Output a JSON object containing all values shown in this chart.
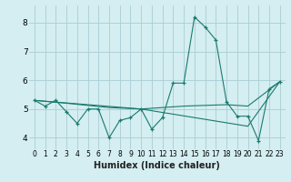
{
  "xlabel": "Humidex (Indice chaleur)",
  "bg_color": "#d4eef1",
  "grid_color": "#aacdd4",
  "line_color": "#1a7a6e",
  "xlim": [
    -0.5,
    23.5
  ],
  "ylim": [
    3.6,
    8.6
  ],
  "xticks": [
    0,
    1,
    2,
    3,
    4,
    5,
    6,
    7,
    8,
    9,
    10,
    11,
    12,
    13,
    14,
    15,
    16,
    17,
    18,
    19,
    20,
    21,
    22,
    23
  ],
  "yticks": [
    4,
    5,
    6,
    7,
    8
  ],
  "series_main": [
    [
      0,
      5.3
    ],
    [
      1,
      5.1
    ],
    [
      2,
      5.3
    ],
    [
      3,
      4.9
    ],
    [
      4,
      4.5
    ],
    [
      5,
      5.0
    ],
    [
      6,
      5.0
    ],
    [
      7,
      4.0
    ],
    [
      8,
      4.6
    ],
    [
      9,
      4.7
    ],
    [
      10,
      5.0
    ],
    [
      11,
      4.3
    ],
    [
      12,
      4.7
    ],
    [
      13,
      5.9
    ],
    [
      14,
      5.9
    ],
    [
      15,
      8.2
    ],
    [
      16,
      7.85
    ],
    [
      17,
      7.4
    ],
    [
      18,
      5.25
    ],
    [
      19,
      4.75
    ],
    [
      20,
      4.75
    ],
    [
      21,
      3.9
    ],
    [
      22,
      5.7
    ],
    [
      23,
      5.95
    ]
  ],
  "series_flat1": [
    [
      0,
      5.3
    ],
    [
      3,
      5.2
    ],
    [
      7,
      5.05
    ],
    [
      10,
      5.0
    ],
    [
      14,
      5.1
    ],
    [
      18,
      5.15
    ],
    [
      20,
      5.1
    ],
    [
      23,
      5.95
    ]
  ],
  "series_flat2": [
    [
      0,
      5.3
    ],
    [
      10,
      5.0
    ],
    [
      20,
      4.4
    ],
    [
      23,
      5.95
    ]
  ]
}
